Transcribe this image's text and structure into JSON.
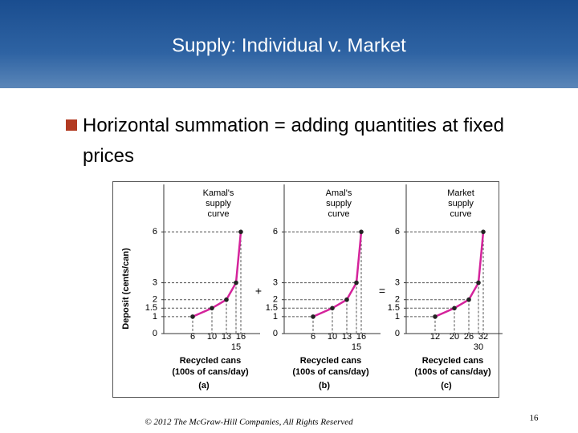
{
  "slide": {
    "title": "Supply: Individual v. Market",
    "bullet": "Horizontal summation = adding quantities at fixed prices",
    "operators": [
      "+",
      "="
    ],
    "footer": "© 2012 The McGraw-Hill Companies, All Rights Reserved",
    "page_number": "16"
  },
  "chart_data": [
    {
      "type": "line",
      "title": [
        "Kamal's",
        "supply",
        "curve"
      ],
      "label": "(a)",
      "ylabel": "Deposit (cents/can)",
      "xlabel": [
        "Recycled cans",
        "(100s of cans/day)"
      ],
      "series": [
        {
          "color": "#d4239b",
          "x": [
            6,
            10,
            13,
            15,
            16
          ],
          "values": [
            1,
            1.5,
            2,
            3,
            6
          ]
        }
      ],
      "xlim": [
        0,
        20
      ],
      "ylim": [
        0,
        8.8
      ],
      "xticks": [
        6,
        10,
        13,
        15,
        16
      ],
      "yticks": [
        0,
        1,
        1.5,
        2,
        3,
        6
      ]
    },
    {
      "type": "line",
      "title": [
        "Amal's",
        "supply",
        "curve"
      ],
      "label": "(b)",
      "xlabel": [
        "Recycled cans",
        "(100s of cans/day)"
      ],
      "series": [
        {
          "color": "#d4239b",
          "x": [
            6,
            10,
            13,
            15,
            16
          ],
          "values": [
            1,
            1.5,
            2,
            3,
            6
          ]
        }
      ],
      "xlim": [
        0,
        20
      ],
      "ylim": [
        0,
        8.8
      ],
      "xticks": [
        6,
        10,
        13,
        15,
        16
      ],
      "yticks": [
        0,
        1,
        1.5,
        2,
        3,
        6
      ]
    },
    {
      "type": "line",
      "title": [
        "Market",
        "supply",
        "curve"
      ],
      "label": "(c)",
      "xlabel": [
        "Recycled cans",
        "(100s of cans/day)"
      ],
      "series": [
        {
          "color": "#d4239b",
          "x": [
            12,
            20,
            26,
            30,
            32
          ],
          "values": [
            1,
            1.5,
            2,
            3,
            6
          ]
        }
      ],
      "xlim": [
        0,
        40
      ],
      "ylim": [
        0,
        8.8
      ],
      "xticks": [
        12,
        20,
        26,
        30,
        32
      ],
      "yticks": [
        0,
        1,
        1.5,
        2,
        3,
        6
      ]
    }
  ]
}
